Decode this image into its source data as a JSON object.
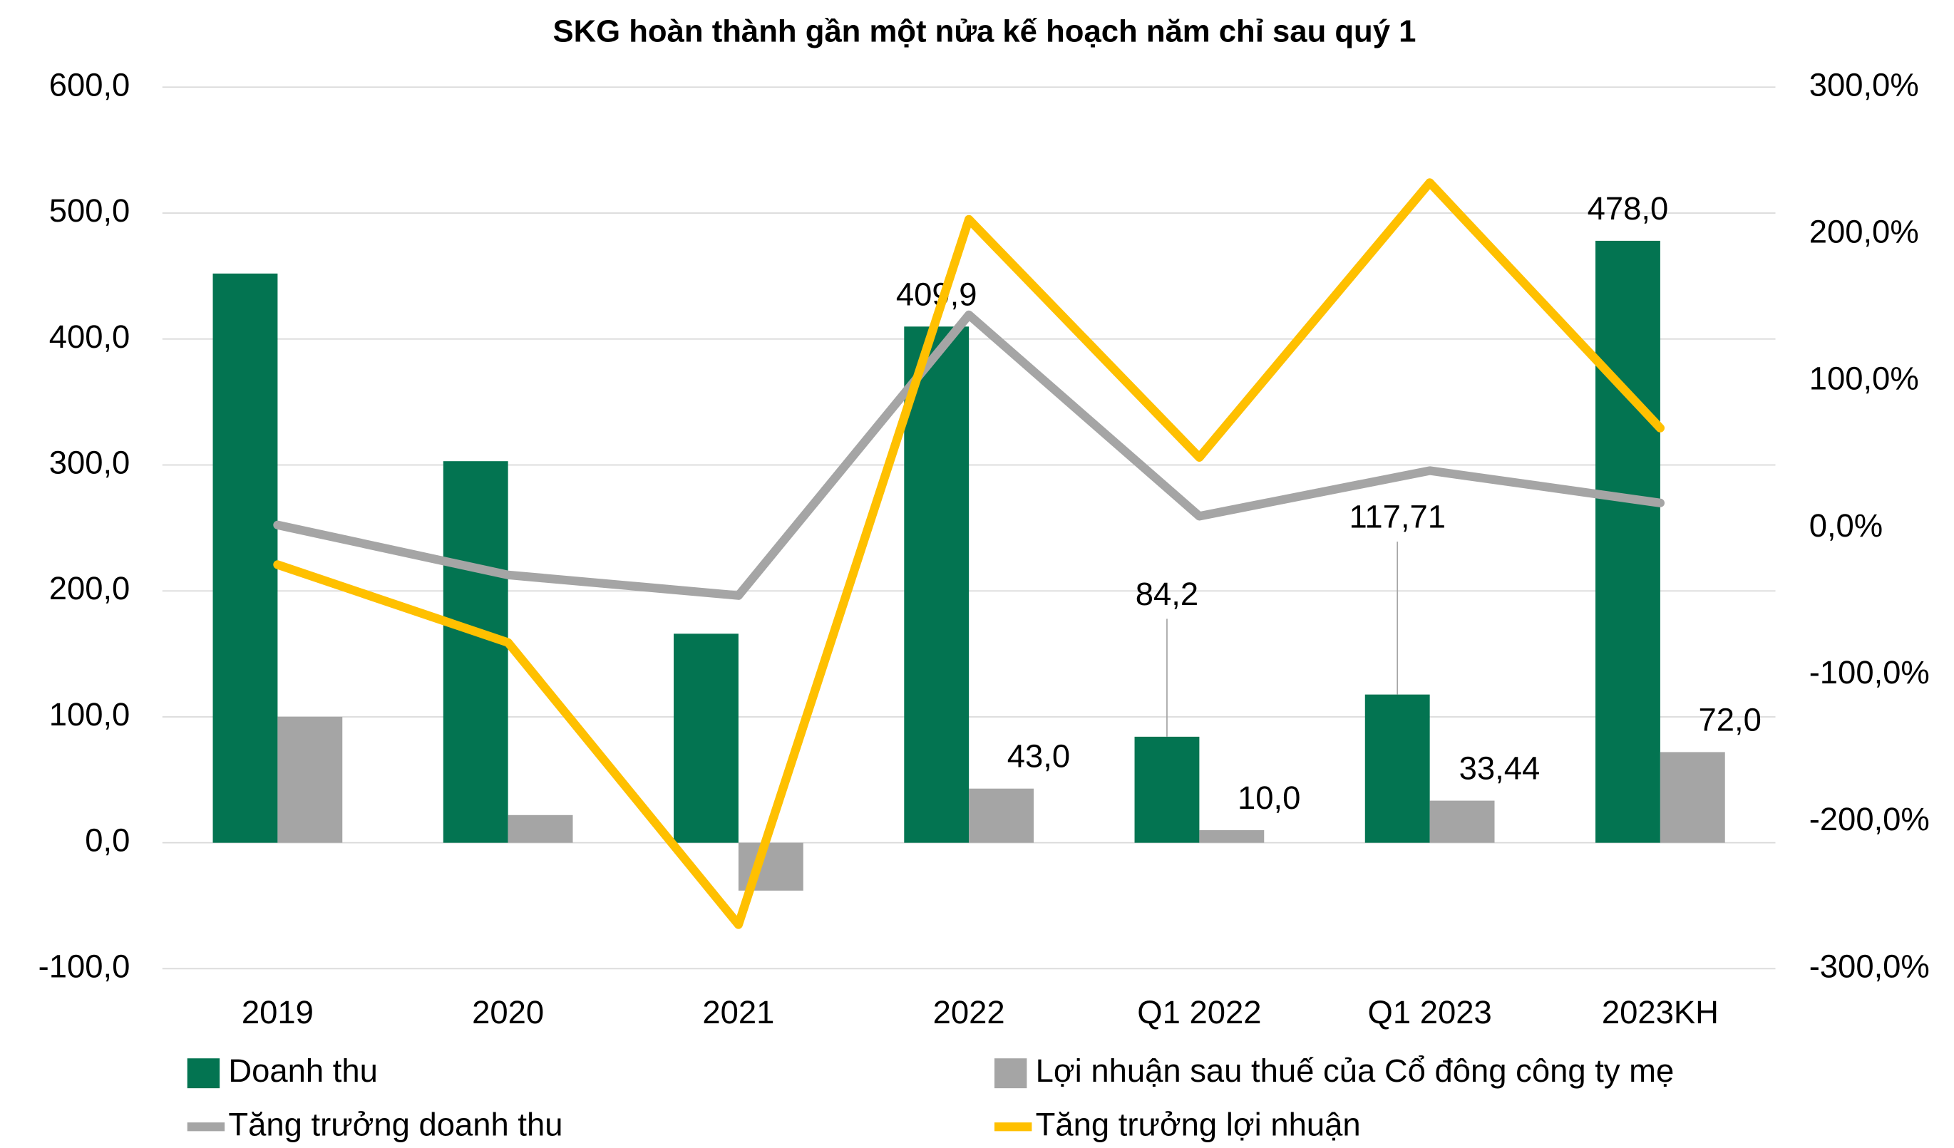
{
  "chart_data": {
    "type": "bar-line",
    "title": "SKG hoàn thành gần một nửa kế hoạch năm chỉ sau quý 1",
    "categories": [
      "2019",
      "2020",
      "2021",
      "2022",
      "Q1 2022",
      "Q1 2023",
      "2023KH"
    ],
    "series": [
      {
        "name": "Doanh thu",
        "type": "bar",
        "color": "#037451",
        "values": [
          452,
          303,
          166,
          409.9,
          84.2,
          117.71,
          478
        ],
        "value_labels": [
          null,
          null,
          null,
          "409,9",
          "84,2",
          "117,71",
          "478,0"
        ]
      },
      {
        "name": "Lợi nhuận sau thuế của Cổ đông công ty mẹ",
        "type": "bar",
        "color": "#a5a5a5",
        "values": [
          100,
          22,
          -38,
          43,
          10,
          33.44,
          72
        ],
        "value_labels": [
          null,
          null,
          null,
          "43,0",
          "10,0",
          "33,44",
          "72,0"
        ]
      },
      {
        "name": "Tăng trưởng doanh thu",
        "type": "line",
        "axis": "y2",
        "color": "#a5a5a5",
        "values": [
          2,
          -32,
          -46,
          145,
          8,
          39,
          17
        ]
      },
      {
        "name": "Tăng trưởng lợi nhuận",
        "type": "line",
        "axis": "y2",
        "color": "#ffc000",
        "values": [
          -25,
          -78,
          -270,
          210,
          48,
          235,
          68
        ]
      }
    ],
    "ylim": [
      -100,
      600
    ],
    "yticks": [
      {
        "value": -100,
        "label": "-100,0"
      },
      {
        "value": 0,
        "label": "0,0"
      },
      {
        "value": 100,
        "label": "100,0"
      },
      {
        "value": 200,
        "label": "200,0"
      },
      {
        "value": 300,
        "label": "300,0"
      },
      {
        "value": 400,
        "label": "400,0"
      },
      {
        "value": 500,
        "label": "500,0"
      },
      {
        "value": 600,
        "label": "600,0"
      }
    ],
    "y2lim": [
      -300,
      300
    ],
    "y2ticks": [
      {
        "value": -300,
        "label": "-300,0%"
      },
      {
        "value": -200,
        "label": "-200,0%"
      },
      {
        "value": -100,
        "label": "-100,0%"
      },
      {
        "value": 0,
        "label": "0,0%"
      },
      {
        "value": 100,
        "label": "100,0%"
      },
      {
        "value": 200,
        "label": "200,0%"
      },
      {
        "value": 300,
        "label": "300,0%"
      }
    ],
    "grid": true,
    "legend": "bottom"
  }
}
